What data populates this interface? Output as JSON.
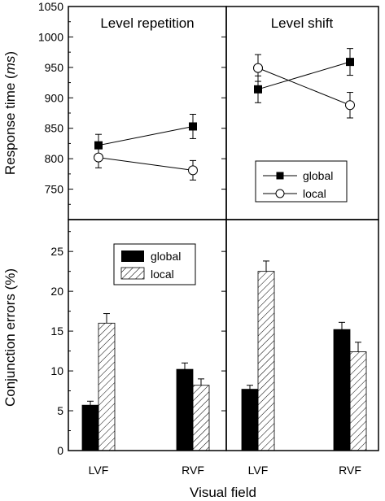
{
  "chart_data": {
    "type": "multi-panel",
    "xlabel": "Visual field",
    "categories": [
      "LVF",
      "RVF"
    ],
    "top": {
      "type": "line",
      "ylabel_main": "Response time (",
      "ylabel_unit": "ms",
      "ylabel_close": ")",
      "ylim": [
        700,
        1050
      ],
      "yticks": [
        750,
        800,
        850,
        900,
        950,
        1000,
        1050
      ],
      "legend": {
        "position": "bottom-right",
        "entries": [
          "global",
          "local"
        ]
      },
      "panels": [
        {
          "title": "Level repetition",
          "series": [
            {
              "name": "global",
              "marker": "filled-square",
              "values": [
                822,
                853
              ],
              "errors": [
                18,
                20
              ]
            },
            {
              "name": "local",
              "marker": "open-circle",
              "values": [
                802,
                781
              ],
              "errors": [
                17,
                16
              ]
            }
          ]
        },
        {
          "title": "Level shift",
          "series": [
            {
              "name": "global",
              "marker": "filled-square",
              "values": [
                914,
                959
              ],
              "errors": [
                22,
                22
              ]
            },
            {
              "name": "local",
              "marker": "open-circle",
              "values": [
                949,
                888
              ],
              "errors": [
                22,
                21
              ]
            }
          ]
        }
      ]
    },
    "bottom": {
      "type": "bar",
      "ylabel": "Conjunction errors (%)",
      "ylim": [
        0,
        29
      ],
      "yticks": [
        0,
        5,
        10,
        15,
        20,
        25
      ],
      "legend": {
        "position": "top",
        "entries": [
          "global",
          "local"
        ]
      },
      "panels": [
        {
          "series": [
            {
              "name": "global",
              "fill": "#000000",
              "values": [
                5.7,
                10.2
              ],
              "errors": [
                0.5,
                0.8
              ]
            },
            {
              "name": "local",
              "fill": "hatched",
              "values": [
                16.0,
                8.2
              ],
              "errors": [
                1.2,
                0.8
              ]
            }
          ]
        },
        {
          "series": [
            {
              "name": "global",
              "fill": "#000000",
              "values": [
                7.7,
                15.2
              ],
              "errors": [
                0.5,
                0.9
              ]
            },
            {
              "name": "local",
              "fill": "hatched",
              "values": [
                22.5,
                12.4
              ],
              "errors": [
                1.3,
                1.2
              ]
            }
          ]
        }
      ]
    }
  }
}
